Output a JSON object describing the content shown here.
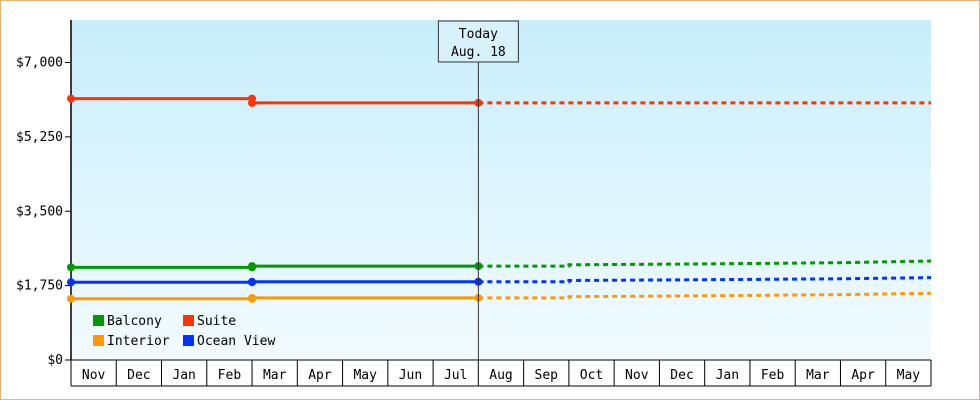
{
  "chart_data": {
    "type": "line",
    "title": "",
    "xlabel": "",
    "ylabel": "",
    "ylim": [
      0,
      8000
    ],
    "y_ticks": [
      {
        "value": 0,
        "label": "$0"
      },
      {
        "value": 1750,
        "label": "$1,750"
      },
      {
        "value": 3500,
        "label": "$3,500"
      },
      {
        "value": 5250,
        "label": "$5,250"
      },
      {
        "value": 7000,
        "label": "$7,000"
      }
    ],
    "x_categories": [
      "Nov",
      "Dec",
      "Jan",
      "Feb",
      "Mar",
      "Apr",
      "May",
      "Jun",
      "Jul",
      "Aug",
      "Sep",
      "Oct",
      "Nov",
      "Dec",
      "Jan",
      "Feb",
      "Mar",
      "Apr",
      "May"
    ],
    "today": {
      "label_line1": "Today",
      "label_line2": "Aug. 18",
      "x": 9
    },
    "series": [
      {
        "name": "Suite",
        "color": "#ff3300",
        "actual": [
          [
            0,
            6150
          ],
          [
            4,
            6150
          ],
          [
            4,
            6050
          ],
          [
            9,
            6050
          ]
        ],
        "markers": [
          [
            0,
            6150
          ],
          [
            4,
            6150
          ],
          [
            4,
            6050
          ],
          [
            9,
            6050
          ]
        ],
        "forecast": [
          [
            9,
            6050
          ],
          [
            19,
            6050
          ]
        ]
      },
      {
        "name": "Balcony",
        "color": "#009900",
        "actual": [
          [
            0,
            2180
          ],
          [
            4,
            2180
          ],
          [
            4,
            2210
          ],
          [
            9,
            2210
          ]
        ],
        "markers": [
          [
            0,
            2180
          ],
          [
            4,
            2180
          ],
          [
            4,
            2210
          ],
          [
            9,
            2210
          ]
        ],
        "forecast": [
          [
            9,
            2210
          ],
          [
            11,
            2210
          ],
          [
            11,
            2240
          ],
          [
            14,
            2260
          ],
          [
            17,
            2290
          ],
          [
            19,
            2330
          ]
        ]
      },
      {
        "name": "Ocean View",
        "color": "#0033ff",
        "actual": [
          [
            0,
            1830
          ],
          [
            4,
            1830
          ],
          [
            4,
            1840
          ],
          [
            9,
            1840
          ]
        ],
        "markers": [
          [
            0,
            1830
          ],
          [
            4,
            1830
          ],
          [
            4,
            1840
          ],
          [
            9,
            1840
          ]
        ],
        "forecast": [
          [
            9,
            1840
          ],
          [
            11,
            1840
          ],
          [
            11,
            1870
          ],
          [
            14,
            1890
          ],
          [
            17,
            1910
          ],
          [
            19,
            1940
          ]
        ]
      },
      {
        "name": "Interior",
        "color": "#ff9900",
        "actual": [
          [
            0,
            1440
          ],
          [
            4,
            1440
          ],
          [
            4,
            1460
          ],
          [
            9,
            1460
          ]
        ],
        "markers": [
          [
            0,
            1440
          ],
          [
            4,
            1440
          ],
          [
            4,
            1460
          ],
          [
            9,
            1460
          ]
        ],
        "forecast": [
          [
            9,
            1460
          ],
          [
            11,
            1460
          ],
          [
            11,
            1490
          ],
          [
            14,
            1510
          ],
          [
            17,
            1540
          ],
          [
            19,
            1570
          ]
        ]
      }
    ],
    "legend": {
      "placement": "bottom-left",
      "rows": [
        [
          "Balcony",
          "Suite"
        ],
        [
          "Interior",
          "Ocean View"
        ]
      ]
    },
    "colors": {
      "plot_bg_top": "#c8eefb",
      "plot_bg_bottom": "#f2fbff",
      "axis": "#000000",
      "frame_border": "#e8b27a"
    }
  }
}
